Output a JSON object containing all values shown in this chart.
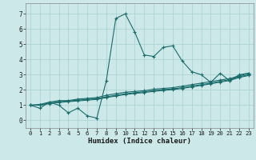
{
  "xlabel": "Humidex (Indice chaleur)",
  "xlim": [
    -0.5,
    23.5
  ],
  "ylim": [
    -0.5,
    7.7
  ],
  "xticks": [
    0,
    1,
    2,
    3,
    4,
    5,
    6,
    7,
    8,
    9,
    10,
    11,
    12,
    13,
    14,
    15,
    16,
    17,
    18,
    19,
    20,
    21,
    22,
    23
  ],
  "yticks": [
    0,
    1,
    2,
    3,
    4,
    5,
    6,
    7
  ],
  "bg_color": "#cce8e8",
  "grid_color": "#add4d4",
  "line_color": "#1a6b6b",
  "lines": [
    {
      "x": [
        0,
        1,
        2,
        3,
        4,
        5,
        6,
        7,
        8,
        9,
        10,
        11,
        12,
        13,
        14,
        15,
        16,
        17,
        18,
        19,
        20,
        21,
        22,
        23
      ],
      "y": [
        1.0,
        0.8,
        1.2,
        1.0,
        0.5,
        0.8,
        0.3,
        0.15,
        2.6,
        6.7,
        7.0,
        5.8,
        4.3,
        4.2,
        4.8,
        4.9,
        3.9,
        3.2,
        3.0,
        2.5,
        3.1,
        2.6,
        3.0,
        3.1
      ]
    },
    {
      "x": [
        0,
        1,
        2,
        3,
        4,
        5,
        6,
        7,
        8,
        9,
        10,
        11,
        12,
        13,
        14,
        15,
        16,
        17,
        18,
        19,
        20,
        21,
        22,
        23
      ],
      "y": [
        1.0,
        1.05,
        1.2,
        1.3,
        1.3,
        1.4,
        1.45,
        1.5,
        1.65,
        1.75,
        1.85,
        1.9,
        1.95,
        2.05,
        2.1,
        2.15,
        2.25,
        2.35,
        2.45,
        2.55,
        2.65,
        2.75,
        2.92,
        3.1
      ]
    },
    {
      "x": [
        0,
        1,
        2,
        3,
        4,
        5,
        6,
        7,
        8,
        9,
        10,
        11,
        12,
        13,
        14,
        15,
        16,
        17,
        18,
        19,
        20,
        21,
        22,
        23
      ],
      "y": [
        1.0,
        1.0,
        1.15,
        1.22,
        1.28,
        1.33,
        1.38,
        1.43,
        1.55,
        1.65,
        1.75,
        1.82,
        1.88,
        1.96,
        2.02,
        2.07,
        2.15,
        2.25,
        2.35,
        2.45,
        2.57,
        2.67,
        2.87,
        3.0
      ]
    },
    {
      "x": [
        0,
        1,
        2,
        3,
        4,
        5,
        6,
        7,
        8,
        9,
        10,
        11,
        12,
        13,
        14,
        15,
        16,
        17,
        18,
        19,
        20,
        21,
        22,
        23
      ],
      "y": [
        1.0,
        1.0,
        1.1,
        1.18,
        1.23,
        1.28,
        1.33,
        1.38,
        1.5,
        1.6,
        1.7,
        1.77,
        1.83,
        1.91,
        1.97,
        2.02,
        2.1,
        2.2,
        2.3,
        2.4,
        2.52,
        2.62,
        2.82,
        2.95
      ]
    }
  ]
}
